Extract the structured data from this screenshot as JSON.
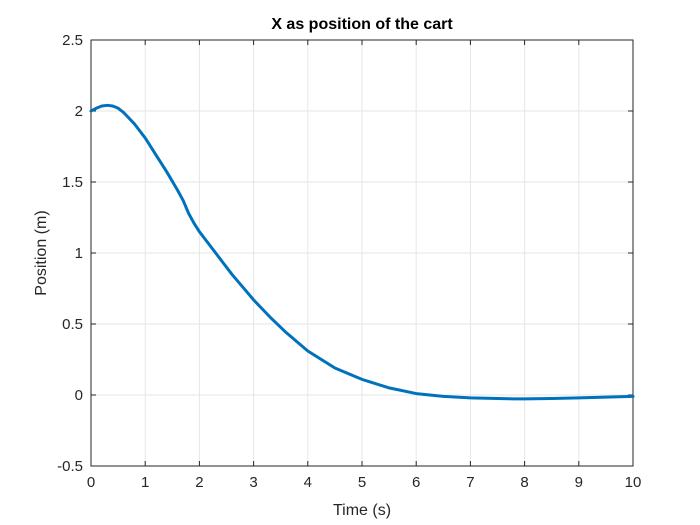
{
  "chart_data": {
    "type": "line",
    "title": "X as position of the cart",
    "xlabel": "Time (s)",
    "ylabel": "Position (m)",
    "xlim": [
      0,
      10
    ],
    "ylim": [
      -0.5,
      2.5
    ],
    "xticks": [
      0,
      1,
      2,
      3,
      4,
      5,
      6,
      7,
      8,
      9,
      10
    ],
    "yticks": [
      -0.5,
      0,
      0.5,
      1,
      1.5,
      2,
      2.5
    ],
    "xtick_labels": [
      "0",
      "1",
      "2",
      "3",
      "4",
      "5",
      "6",
      "7",
      "8",
      "9",
      "10"
    ],
    "ytick_labels": [
      "-0.5",
      "0",
      "0.5",
      "1",
      "1.5",
      "2",
      "2.5"
    ],
    "grid": true,
    "colors": {
      "line": "#0072BD",
      "grid": "#e6e6e6",
      "axis": "#262626"
    },
    "series": [
      {
        "x": [
          0,
          0.1,
          0.2,
          0.3,
          0.4,
          0.5,
          0.6,
          0.8,
          1.0,
          1.2,
          1.4,
          1.6,
          1.7,
          1.8,
          1.9,
          2.0,
          2.2,
          2.4,
          2.6,
          2.8,
          3.0,
          3.3,
          3.6,
          4.0,
          4.5,
          5.0,
          5.5,
          6.0,
          6.5,
          7.0,
          7.5,
          7.8,
          8.0,
          8.5,
          9.0,
          9.5,
          10.0
        ],
        "y": [
          2.0,
          2.02,
          2.035,
          2.04,
          2.035,
          2.02,
          1.99,
          1.91,
          1.81,
          1.69,
          1.57,
          1.44,
          1.37,
          1.28,
          1.21,
          1.15,
          1.05,
          0.95,
          0.85,
          0.76,
          0.67,
          0.55,
          0.44,
          0.31,
          0.19,
          0.11,
          0.05,
          0.01,
          -0.01,
          -0.02,
          -0.025,
          -0.027,
          -0.027,
          -0.025,
          -0.02,
          -0.015,
          -0.01
        ]
      }
    ]
  }
}
